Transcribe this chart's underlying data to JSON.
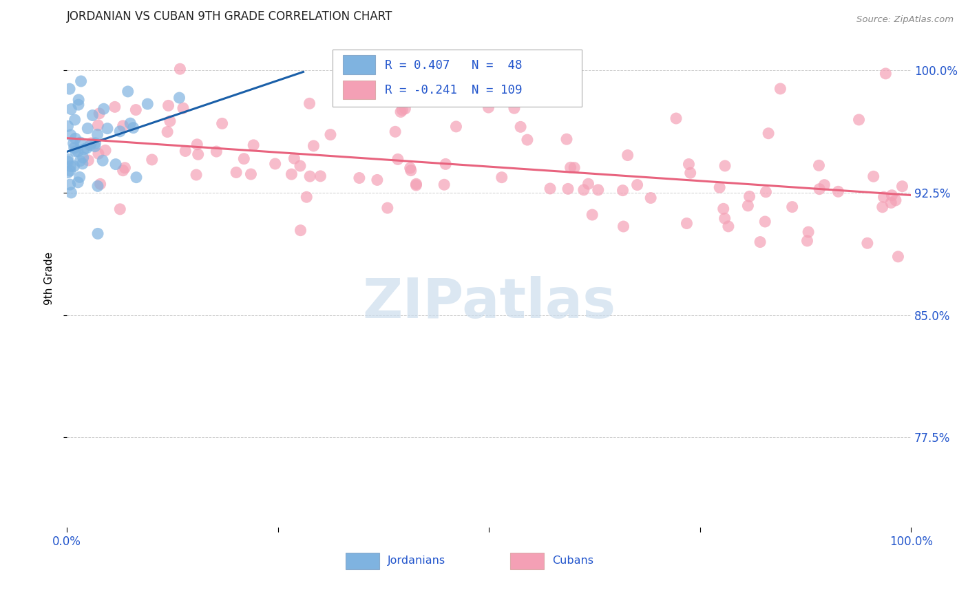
{
  "title": "JORDANIAN VS CUBAN 9TH GRADE CORRELATION CHART",
  "source": "Source: ZipAtlas.com",
  "ylabel": "9th Grade",
  "xlim": [
    0.0,
    1.0
  ],
  "ylim": [
    0.72,
    1.025
  ],
  "yticks": [
    0.775,
    0.85,
    0.925,
    1.0
  ],
  "ytick_labels": [
    "77.5%",
    "85.0%",
    "92.5%",
    "100.0%"
  ],
  "jordan_R": 0.407,
  "jordan_N": 48,
  "cuba_R": -0.241,
  "cuba_N": 109,
  "jordan_color": "#7fb3e0",
  "cuba_color": "#f4a0b5",
  "jordan_line_color": "#1a5fa8",
  "cuba_line_color": "#e8637e",
  "text_color": "#2255cc",
  "watermark_color": "#ccdded",
  "title_color": "#222222",
  "source_color": "#888888"
}
